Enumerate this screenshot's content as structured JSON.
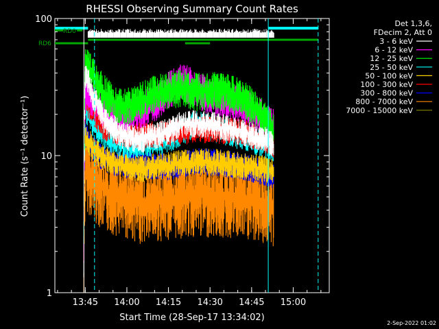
{
  "chart_data": {
    "type": "line",
    "title": "RHESSI Observing Summary Count Rates",
    "xlabel": "Start Time (28-Sep-17 13:34:02)",
    "ylabel": "Count Rate (s⁻¹ detector⁻¹)",
    "y_scale": "log",
    "ylim": [
      1,
      100
    ],
    "y_ticks": [
      "1",
      "10",
      "100"
    ],
    "xlim": [
      "13:34:02",
      "15:13"
    ],
    "x_ticks": [
      "13:45",
      "14:00",
      "14:15",
      "14:30",
      "14:45",
      "15:00"
    ],
    "legend_header": [
      "Det 1,3,6,",
      "FDecim 2, Att 0"
    ],
    "legend_position": "top-right-outside",
    "timestamp": "2-Sep-2022 01:02",
    "flags": [
      {
        "label": "RD0",
        "color": "#00aa00"
      },
      {
        "label": "RD6",
        "color": "#00aa00"
      }
    ],
    "series": [
      {
        "name": "3 - 6 keV",
        "color": "#ffffff",
        "points": [
          [
            "13:44:30",
            1.5
          ],
          [
            "13:45:00",
            40
          ],
          [
            "13:48:00",
            26
          ],
          [
            "13:52:00",
            18
          ],
          [
            "13:58:00",
            14
          ],
          [
            "14:05:00",
            13
          ],
          [
            "14:15:00",
            15
          ],
          [
            "14:20:00",
            17
          ],
          [
            "14:30:00",
            17
          ],
          [
            "14:40:00",
            15
          ],
          [
            "14:50:00",
            13
          ],
          [
            "14:53:00",
            12
          ]
        ]
      },
      {
        "name": "6 - 12 keV",
        "color": "#ff00ff",
        "points": [
          [
            "13:44:30",
            2
          ],
          [
            "13:45:00",
            30
          ],
          [
            "13:48:00",
            25
          ],
          [
            "13:52:00",
            21
          ],
          [
            "13:58:00",
            19
          ],
          [
            "14:05:00",
            21
          ],
          [
            "14:10:00",
            24
          ],
          [
            "14:15:00",
            30
          ],
          [
            "14:20:00",
            35
          ],
          [
            "14:25:00",
            30
          ],
          [
            "14:30:00",
            27
          ],
          [
            "14:40:00",
            24
          ],
          [
            "14:50:00",
            18
          ],
          [
            "14:53:00",
            16
          ]
        ]
      },
      {
        "name": "12 - 25 keV",
        "color": "#00ff00",
        "points": [
          [
            "13:44:30",
            3
          ],
          [
            "13:45:00",
            45
          ],
          [
            "13:48:00",
            38
          ],
          [
            "13:52:00",
            28
          ],
          [
            "13:58:00",
            22
          ],
          [
            "14:05:00",
            25
          ],
          [
            "14:10:00",
            28
          ],
          [
            "14:15:00",
            30
          ],
          [
            "14:20:00",
            31
          ],
          [
            "14:25:00",
            29
          ],
          [
            "14:30:00",
            30
          ],
          [
            "14:35:00",
            29
          ],
          [
            "14:40:00",
            27
          ],
          [
            "14:45:00",
            23
          ],
          [
            "14:50:00",
            18
          ],
          [
            "14:53:00",
            15
          ]
        ]
      },
      {
        "name": "25 - 50 keV",
        "color": "#00ffff",
        "points": [
          [
            "13:44:30",
            2
          ],
          [
            "13:45:00",
            22
          ],
          [
            "13:48:00",
            17
          ],
          [
            "13:52:00",
            14
          ],
          [
            "13:58:00",
            12
          ],
          [
            "14:05:00",
            12
          ],
          [
            "14:15:00",
            13
          ],
          [
            "14:20:00",
            15
          ],
          [
            "14:25:00",
            17
          ],
          [
            "14:30:00",
            16
          ],
          [
            "14:40:00",
            14
          ],
          [
            "14:50:00",
            12
          ],
          [
            "14:53:00",
            11
          ]
        ]
      },
      {
        "name": "50 - 100 keV",
        "color": "#ffcc00",
        "points": [
          [
            "13:44:30",
            1.8
          ],
          [
            "13:45:00",
            14
          ],
          [
            "13:48:00",
            11
          ],
          [
            "13:52:00",
            9.5
          ],
          [
            "13:58:00",
            8.5
          ],
          [
            "14:05:00",
            8
          ],
          [
            "14:15:00",
            8.5
          ],
          [
            "14:25:00",
            9
          ],
          [
            "14:30:00",
            9
          ],
          [
            "14:40:00",
            8.5
          ],
          [
            "14:50:00",
            8
          ],
          [
            "14:53:00",
            7.5
          ]
        ]
      },
      {
        "name": "100 - 300 keV",
        "color": "#ff0000",
        "points": [
          [
            "13:44:30",
            2
          ],
          [
            "13:45:00",
            25
          ],
          [
            "13:48:00",
            20
          ],
          [
            "13:52:00",
            16
          ],
          [
            "13:58:00",
            14.5
          ],
          [
            "14:05:00",
            14
          ],
          [
            "14:15:00",
            14.5
          ],
          [
            "14:20:00",
            15
          ],
          [
            "14:25:00",
            15.5
          ],
          [
            "14:30:00",
            15.5
          ],
          [
            "14:40:00",
            15
          ],
          [
            "14:50:00",
            13
          ],
          [
            "14:53:00",
            12
          ]
        ]
      },
      {
        "name": "300 - 800 keV",
        "color": "#0000ff",
        "points": [
          [
            "13:44:30",
            2.6
          ],
          [
            "13:45:00",
            14
          ],
          [
            "13:48:00",
            11
          ],
          [
            "13:52:00",
            9.5
          ],
          [
            "13:58:00",
            8.5
          ],
          [
            "14:05:00",
            8.5
          ],
          [
            "14:15:00",
            8.3
          ],
          [
            "14:20:00",
            8.5
          ],
          [
            "14:25:00",
            9
          ],
          [
            "14:30:00",
            9
          ],
          [
            "14:40:00",
            8.5
          ],
          [
            "14:50:00",
            7.5
          ],
          [
            "14:53:00",
            7
          ]
        ]
      },
      {
        "name": "800 - 7000 keV",
        "color": "#ff8800",
        "points": [
          [
            "13:44:30",
            1
          ],
          [
            "13:45:00",
            8
          ],
          [
            "13:48:00",
            6.5
          ],
          [
            "13:52:00",
            5.5
          ],
          [
            "13:58:00",
            5
          ],
          [
            "14:05:00",
            4.5
          ],
          [
            "14:15:00",
            4.8
          ],
          [
            "14:25:00",
            5
          ],
          [
            "14:30:00",
            5
          ],
          [
            "14:40:00",
            4.8
          ],
          [
            "14:50:00",
            4.5
          ],
          [
            "14:53:00",
            4.2
          ]
        ]
      },
      {
        "name": "7000 - 15000 keV",
        "color": "#888800",
        "points": []
      }
    ],
    "flag_overlays": [
      {
        "name": "saturation-trace",
        "color": "#ffffff",
        "y": 75,
        "from": "13:46:00",
        "to": "14:53:00"
      },
      {
        "name": "cyan-top-bar",
        "color": "#00ffff",
        "y": 85,
        "segments": [
          [
            "13:34:02",
            "13:46:00"
          ],
          [
            "14:51:00",
            "15:09:00"
          ]
        ]
      },
      {
        "name": "rd0-bar",
        "color": "#00aa00",
        "y": 82,
        "segments": [
          [
            "13:34:02",
            "13:37:00"
          ],
          [
            "13:42:00",
            "13:44:00"
          ]
        ]
      },
      {
        "name": "rd6-bar",
        "color": "#00aa00",
        "y": 66,
        "segments": [
          [
            "13:34:02",
            "13:46:00"
          ],
          [
            "14:21:00",
            "14:30:00"
          ]
        ]
      },
      {
        "name": "green-mid-bar",
        "color": "#00aa00",
        "y": 70,
        "segments": [
          [
            "13:46:00",
            "15:09:00"
          ]
        ]
      }
    ],
    "vertical_markers": [
      {
        "time": "13:44:30",
        "style": "solid",
        "color": "#ffffff"
      },
      {
        "time": "13:48:20",
        "style": "dashed",
        "color": "#00ffff"
      },
      {
        "time": "14:51:00",
        "style": "solid",
        "color": "#00ffff"
      },
      {
        "time": "15:09:00",
        "style": "dashed",
        "color": "#00ffff"
      }
    ]
  }
}
